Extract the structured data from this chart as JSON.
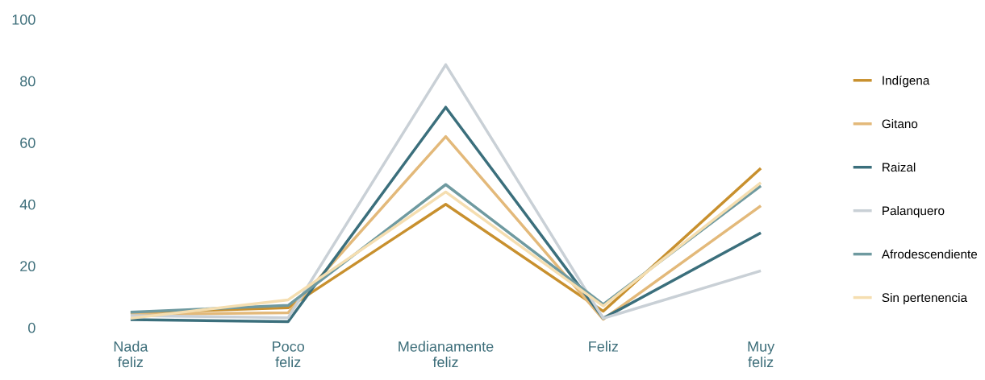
{
  "chart_data": {
    "type": "line",
    "categories": [
      "Nada feliz",
      "Poco feliz",
      "Medianamente feliz",
      "Feliz",
      "Muy feliz"
    ],
    "series": [
      {
        "name": "Indígena",
        "color": "#c8902e",
        "values": [
          4.8,
          6.4,
          40,
          5.3,
          51.7
        ]
      },
      {
        "name": "Gitano",
        "color": "#e3b97a",
        "values": [
          4.3,
          4.8,
          62,
          2.7,
          39.5
        ]
      },
      {
        "name": "Raizal",
        "color": "#3b6f7c",
        "values": [
          2.6,
          1.9,
          71.5,
          3,
          30.7
        ]
      },
      {
        "name": "Palanquero",
        "color": "#c9d0d6",
        "values": [
          3.9,
          3.2,
          85.3,
          3,
          18.4
        ]
      },
      {
        "name": "Afrodescendiente",
        "color": "#6f9aa0",
        "values": [
          5,
          7.2,
          46.4,
          7.5,
          46
        ]
      },
      {
        "name": "Sin pertenencia",
        "color": "#f5deb0",
        "values": [
          3,
          9,
          44,
          7,
          47
        ]
      }
    ],
    "ylim": [
      0,
      100
    ],
    "yticks": [
      0,
      20,
      40,
      60,
      80,
      100
    ],
    "grid": false,
    "legend": "right"
  }
}
